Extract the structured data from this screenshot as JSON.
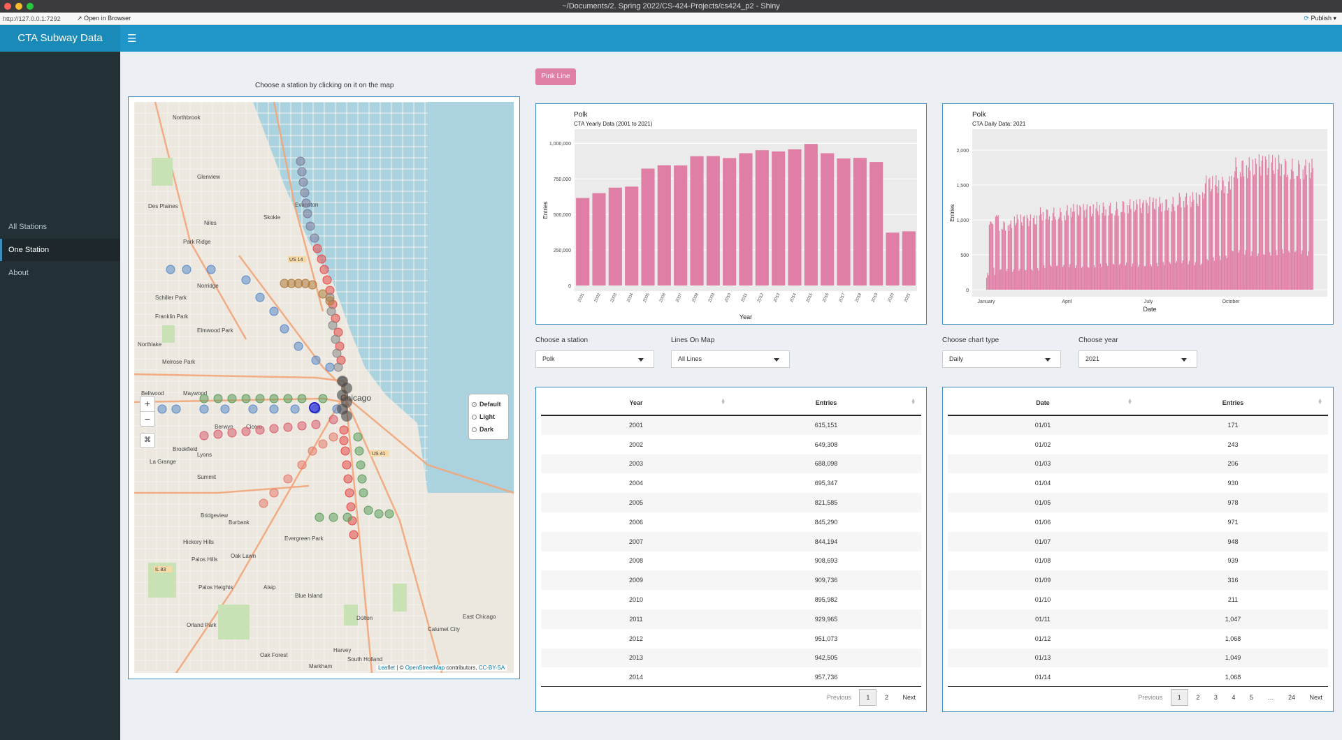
{
  "window": {
    "title": "~/Documents/2. Spring 2022/CS-424-Projects/cs424_p2 - Shiny"
  },
  "toolbar": {
    "url": "http://127.0.0.1:7292",
    "open_browser": "Open in Browser",
    "publish": "Publish"
  },
  "header": {
    "app_title": "CTA Subway Data"
  },
  "sidebar": {
    "items": [
      {
        "label": "All Stations"
      },
      {
        "label": "One Station"
      },
      {
        "label": "About"
      }
    ],
    "active": "One Station"
  },
  "map": {
    "caption": "Choose a station by clicking on it on the map",
    "zoom_in": "+",
    "zoom_out": "−",
    "layers": [
      {
        "label": "Default",
        "checked": true
      },
      {
        "label": "Light",
        "checked": false
      },
      {
        "label": "Dark",
        "checked": false
      }
    ],
    "attribution": {
      "leaflet": "Leaflet",
      "sep": "| ©",
      "osm": "OpenStreetMap",
      "contributors": "contributors,",
      "license": "CC-BY-SA"
    },
    "places": [
      "Northbrook",
      "Glenview",
      "Evanston",
      "Des Plaines",
      "Skokie",
      "Niles",
      "Park Ridge",
      "Norridge",
      "Schiller Park",
      "Franklin Park",
      "Elmwood Park",
      "Northlake",
      "Melrose Park",
      "Bellwood",
      "Maywood",
      "Chicago",
      "Berwyn",
      "Cicero",
      "Brookfield",
      "La Grange",
      "Lyons",
      "Summit",
      "Bridgeview",
      "Burbank",
      "Hickory Hills",
      "Oak Lawn",
      "Evergreen Park",
      "Palos Hills",
      "Palos Heights",
      "Alsip",
      "Blue Island",
      "Orland Park",
      "Oak Forest",
      "Harvey",
      "South Holland",
      "Markham",
      "Dolton",
      "Calumet City",
      "East Chicago",
      "US 14",
      "US 41",
      "IL 83"
    ]
  },
  "line_button": {
    "label": "Pink Line",
    "color": "#e07fa6"
  },
  "yearly_chart": {
    "title": "Polk",
    "subtitle": "CTA Yearly Data (2001 to 2021)"
  },
  "daily_chart": {
    "title": "Polk",
    "subtitle": "CTA Daily Data: 2021"
  },
  "chart_data": [
    {
      "type": "bar",
      "title": "Polk",
      "subtitle": "CTA Yearly Data (2001 to 2021)",
      "xlabel": "Year",
      "ylabel": "Entries",
      "categories": [
        "2001",
        "2002",
        "2003",
        "2004",
        "2005",
        "2006",
        "2007",
        "2008",
        "2009",
        "2010",
        "2011",
        "2012",
        "2013",
        "2014",
        "2015",
        "2016",
        "2017",
        "2018",
        "2019",
        "2020",
        "2021"
      ],
      "values": [
        615151,
        649308,
        688098,
        695347,
        821585,
        845290,
        844194,
        908693,
        909736,
        895982,
        929965,
        951073,
        942505,
        957736,
        995000,
        930000,
        893000,
        897000,
        868000,
        372000,
        381000
      ],
      "yticks": [
        "0",
        "250,000",
        "500,000",
        "750,000",
        "1,000,000"
      ],
      "ylim": [
        0,
        1050000
      ],
      "color": "#e07fa6",
      "grid": true
    },
    {
      "type": "bar",
      "title": "Polk",
      "subtitle": "CTA Daily Data: 2021",
      "xlabel": "Date",
      "ylabel": "Entries",
      "xticks": [
        "January",
        "April",
        "July",
        "October"
      ],
      "yticks": [
        "0",
        "500",
        "1,000",
        "1,500",
        "2,000"
      ],
      "ylim": [
        0,
        2200
      ],
      "daily_first_14": [
        171,
        243,
        206,
        930,
        978,
        971,
        948,
        939,
        316,
        211,
        1047,
        1068,
        1049,
        1068
      ],
      "monthly_weekday_level": [
        1000,
        1080,
        1180,
        1230,
        1260,
        1300,
        1330,
        1400,
        1640,
        1900,
        1940,
        1880
      ],
      "weekend_ratio": 0.3,
      "color": "#e07fa6",
      "grid": true
    }
  ],
  "controls": {
    "station": {
      "label": "Choose a station",
      "value": "Polk"
    },
    "lines": {
      "label": "Lines On Map",
      "value": "All Lines"
    },
    "chart_type": {
      "label": "Choose chart type",
      "value": "Daily"
    },
    "year": {
      "label": "Choose year",
      "value": "2021"
    }
  },
  "yearly_table": {
    "headers": [
      "Year",
      "Entries"
    ],
    "rows": [
      [
        "2001",
        "615,151"
      ],
      [
        "2002",
        "649,308"
      ],
      [
        "2003",
        "688,098"
      ],
      [
        "2004",
        "695,347"
      ],
      [
        "2005",
        "821,585"
      ],
      [
        "2006",
        "845,290"
      ],
      [
        "2007",
        "844,194"
      ],
      [
        "2008",
        "908,693"
      ],
      [
        "2009",
        "909,736"
      ],
      [
        "2010",
        "895,982"
      ],
      [
        "2011",
        "929,965"
      ],
      [
        "2012",
        "951,073"
      ],
      [
        "2013",
        "942,505"
      ],
      [
        "2014",
        "957,736"
      ]
    ],
    "pager": [
      "Previous",
      "1",
      "2",
      "Next"
    ]
  },
  "daily_table": {
    "headers": [
      "Date",
      "Entries"
    ],
    "rows": [
      [
        "01/01",
        "171"
      ],
      [
        "01/02",
        "243"
      ],
      [
        "01/03",
        "206"
      ],
      [
        "01/04",
        "930"
      ],
      [
        "01/05",
        "978"
      ],
      [
        "01/06",
        "971"
      ],
      [
        "01/07",
        "948"
      ],
      [
        "01/08",
        "939"
      ],
      [
        "01/09",
        "316"
      ],
      [
        "01/10",
        "211"
      ],
      [
        "01/11",
        "1,047"
      ],
      [
        "01/12",
        "1,068"
      ],
      [
        "01/13",
        "1,049"
      ],
      [
        "01/14",
        "1,068"
      ]
    ],
    "pager": [
      "Previous",
      "1",
      "2",
      "3",
      "4",
      "5",
      "…",
      "24",
      "Next"
    ]
  },
  "colors": {
    "header": "#1f96c7",
    "sidebar": "#233137",
    "accent": "#3c8dbc",
    "bar": "#e07fa6"
  }
}
